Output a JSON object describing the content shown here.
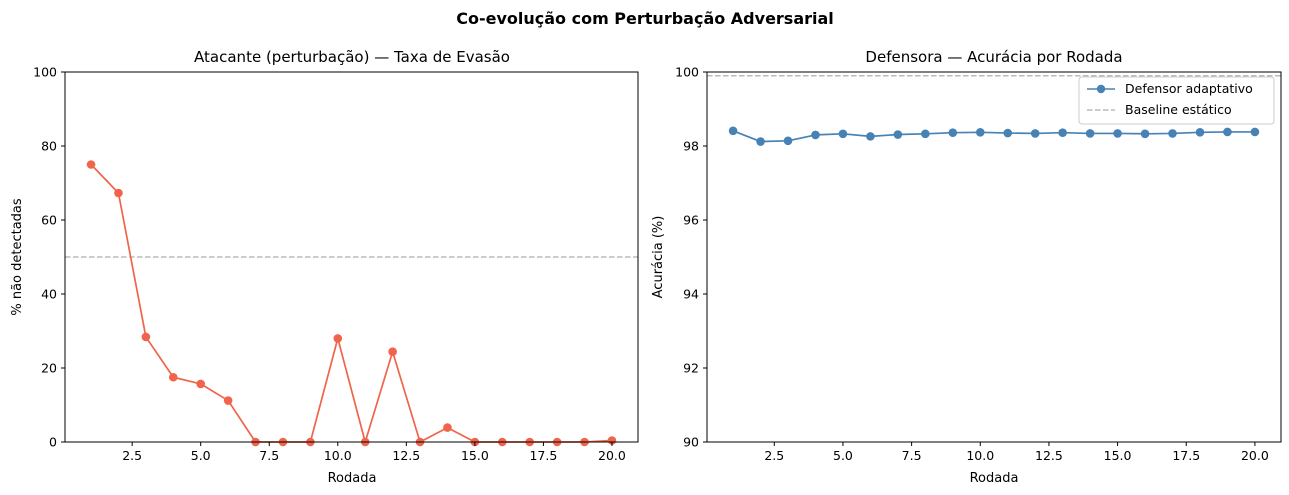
{
  "figure": {
    "suptitle": "Co-evolução com Perturbação Adversarial"
  },
  "chart_data": [
    {
      "type": "line",
      "title": "Atacante (perturbação) — Taxa de Evasão",
      "xlabel": "Rodada",
      "ylabel": "% não detectadas",
      "xlim": [
        0.05,
        20.95
      ],
      "ylim": [
        0,
        100
      ],
      "xticks": [
        "2.5",
        "5.0",
        "7.5",
        "10.0",
        "12.5",
        "15.0",
        "17.5",
        "20.0"
      ],
      "yticks": [
        "0",
        "20",
        "40",
        "60",
        "80",
        "100"
      ],
      "grid": false,
      "reference_line": {
        "y": 50,
        "style": "dashed",
        "color": "#bbbbbb"
      },
      "series": [
        {
          "color": "#f0644b",
          "x": [
            1,
            2,
            3,
            4,
            5,
            6,
            7,
            8,
            9,
            10,
            11,
            12,
            13,
            14,
            15,
            16,
            17,
            18,
            19,
            20
          ],
          "values": [
            75.0,
            67.3,
            28.4,
            17.5,
            15.7,
            11.2,
            0.0,
            0.0,
            0.0,
            28.0,
            0.0,
            24.4,
            0.0,
            3.9,
            0.0,
            0.0,
            0.0,
            0.0,
            0.0,
            0.4
          ]
        }
      ]
    },
    {
      "type": "line",
      "title": "Defensora — Acurácia por Rodada",
      "xlabel": "Rodada",
      "ylabel": "Acurácia (%)",
      "xlim": [
        0.05,
        20.95
      ],
      "ylim": [
        90,
        100
      ],
      "xticks": [
        "2.5",
        "5.0",
        "7.5",
        "10.0",
        "12.5",
        "15.0",
        "17.5",
        "20.0"
      ],
      "yticks": [
        "90",
        "92",
        "94",
        "96",
        "98",
        "100"
      ],
      "grid": false,
      "legend": "top-right",
      "reference_line": {
        "y": 99.9,
        "style": "dashed",
        "color": "#bbbbbb",
        "name": "Baseline estático"
      },
      "series": [
        {
          "name": "Defensor adaptativo",
          "color": "#4682b4",
          "x": [
            1,
            2,
            3,
            4,
            5,
            6,
            7,
            8,
            9,
            10,
            11,
            12,
            13,
            14,
            15,
            16,
            17,
            18,
            19,
            20
          ],
          "values": [
            98.41,
            98.12,
            98.14,
            98.3,
            98.33,
            98.26,
            98.31,
            98.33,
            98.36,
            98.37,
            98.35,
            98.34,
            98.36,
            98.34,
            98.34,
            98.33,
            98.34,
            98.37,
            98.38,
            98.38
          ]
        }
      ]
    }
  ]
}
